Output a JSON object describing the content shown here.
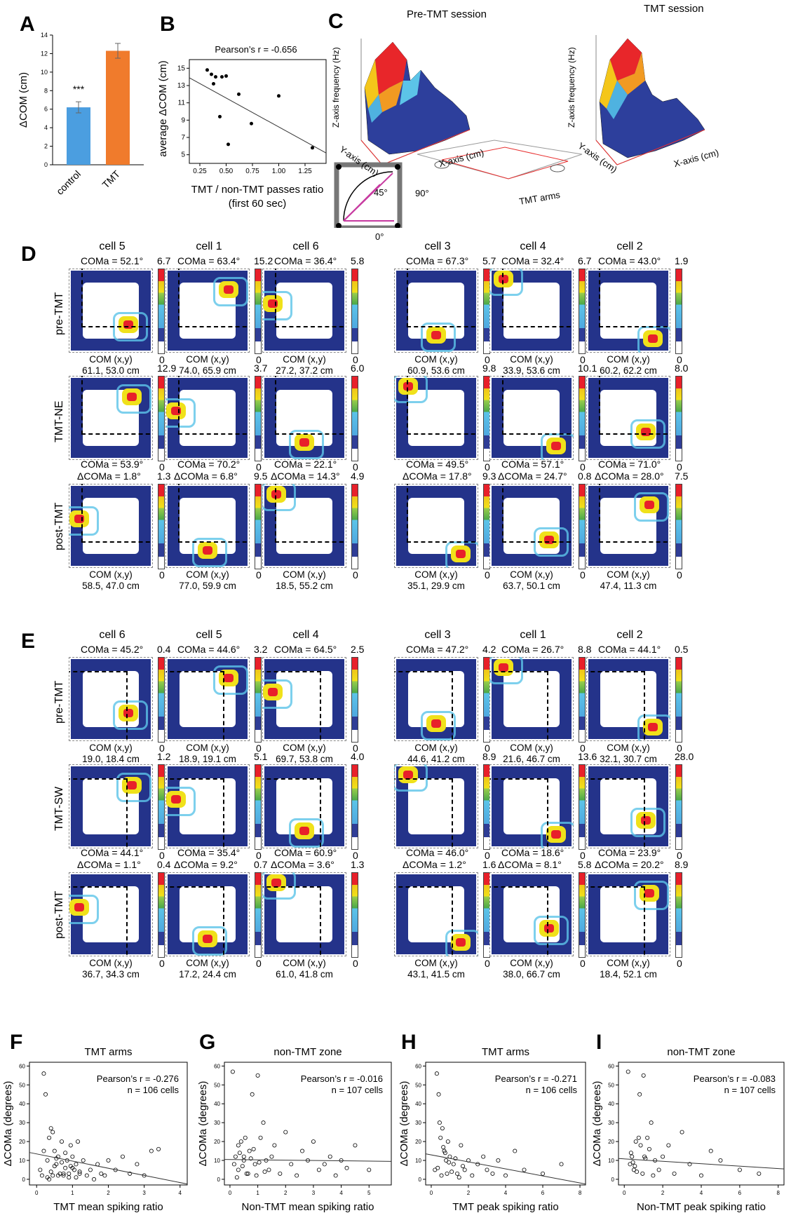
{
  "panels": {
    "A": {
      "letter": "A",
      "ylabel": "ΔCOM (cm)",
      "stars": "***",
      "chart_data": {
        "type": "bar",
        "categories": [
          "control",
          "TMT"
        ],
        "values": [
          6.2,
          12.3
        ],
        "errors": [
          0.6,
          0.8
        ],
        "ylim": [
          0,
          14
        ],
        "yticks": [
          "0",
          "2",
          "4",
          "6",
          "8",
          "10",
          "12",
          "14"
        ],
        "colors": [
          "#4b9ee0",
          "#f07b2c"
        ]
      }
    },
    "B": {
      "letter": "B",
      "annotation": "Pearson’s r = -0.656",
      "ylabel": "average ΔCOM (cm)",
      "xlabel1": "TMT / non-TMT passes ratio",
      "xlabel2": "(first 60 sec)",
      "chart_data": {
        "type": "scatter",
        "xlim": [
          0.15,
          1.45
        ],
        "ylim": [
          4,
          16
        ],
        "xticks": [
          "0.25",
          "0.50",
          "0.75",
          "1.00",
          "1.25"
        ],
        "yticks": [
          "5",
          "7",
          "9",
          "11",
          "13",
          "15"
        ],
        "x": [
          0.32,
          0.36,
          0.38,
          0.4,
          0.46,
          0.5,
          0.62,
          0.74,
          1.0,
          1.32,
          0.52,
          0.44
        ],
        "y": [
          14.8,
          14.3,
          13.2,
          14.0,
          14.0,
          14.1,
          12.0,
          8.6,
          11.8,
          5.8,
          6.2,
          9.4
        ],
        "fit": [
          [
            0.15,
            13.9
          ],
          [
            1.45,
            5.2
          ]
        ]
      }
    },
    "C": {
      "letter": "C",
      "title_left": "Pre-TMT session",
      "title_right": "TMT session",
      "zlabel": "Z-axis frequency (Hz)",
      "ylabel": "Y-axis (cm)",
      "xlabel": "X-axis (cm)",
      "tmt_arms": "TMT arms",
      "zticks_left": [
        "0",
        "0.5",
        "1.0",
        "1.5",
        "2.0",
        "2.5",
        "3.0",
        "3.5"
      ],
      "zticks_right": [
        "0",
        "0.5",
        "1.0",
        "1.5",
        "2.0",
        "2.5",
        "3.0",
        "3.5",
        "4.0"
      ],
      "yticks": [
        "0",
        "20",
        "40",
        "60",
        "80"
      ],
      "xticks": [
        "0",
        "20",
        "40",
        "60",
        "80"
      ],
      "angle_labels": [
        "45°",
        "90°",
        "0°"
      ]
    },
    "D": {
      "letter": "D",
      "rows": [
        "pre-TMT",
        "TMT-NE",
        "post-TMT"
      ],
      "cells": [
        {
          "name": "cell 5",
          "pre": {
            "coma": "COMa = 52.1°",
            "max": "6.7",
            "min": "0",
            "com1": "COM (x,y)",
            "com2": "61.1, 53.0 cm"
          },
          "mid": {
            "max": "12.9",
            "min": "0"
          },
          "post": {
            "coma": "COMa = 53.9°",
            "dcoma": "ΔCOMa = 1.8°",
            "max": "1.3",
            "min": "0",
            "com1": "COM (x,y)",
            "com2": "58.5, 47.0 cm"
          }
        },
        {
          "name": "cell 1",
          "pre": {
            "coma": "COMa = 63.4°",
            "max": "15.2",
            "min": "0",
            "com1": "COM (x,y)",
            "com2": "74.0, 65.9 cm"
          },
          "mid": {
            "max": "3.7",
            "min": "0"
          },
          "post": {
            "coma": "COMa = 70.2°",
            "dcoma": "ΔCOMa = 6.8°",
            "max": "9.5",
            "min": "0",
            "com1": "COM (x,y)",
            "com2": "77.0, 59.9 cm"
          }
        },
        {
          "name": "cell 6",
          "pre": {
            "coma": "COMa = 36.4°",
            "max": "5.8",
            "min": "0",
            "com1": "COM (x,y)",
            "com2": "27.2, 37.2 cm"
          },
          "mid": {
            "max": "6.0",
            "min": "0"
          },
          "post": {
            "coma": "COMa = 22.1°",
            "dcoma": "ΔCOMa = 14.3°",
            "max": "4.9",
            "min": "0",
            "com1": "COM (x,y)",
            "com2": "18.5, 55.2 cm"
          }
        },
        {
          "name": "cell 3",
          "pre": {
            "coma": "COMa = 67.3°",
            "max": "5.7",
            "min": "0",
            "com1": "COM (x,y)",
            "com2": "60.9, 53.6 cm"
          },
          "mid": {
            "max": "9.8",
            "min": "0"
          },
          "post": {
            "coma": "COMa = 49.5°",
            "dcoma": "ΔCOMa = 17.8°",
            "max": "9.3",
            "min": "0",
            "com1": "COM (x,y)",
            "com2": "35.1, 29.9 cm"
          }
        },
        {
          "name": "cell 4",
          "pre": {
            "coma": "COMa = 32.4°",
            "max": "6.7",
            "min": "0",
            "com1": "COM (x,y)",
            "com2": "33.9, 53.6 cm"
          },
          "mid": {
            "max": "10.1",
            "min": "0"
          },
          "post": {
            "coma": "COMa = 57.1°",
            "dcoma": "ΔCOMa = 24.7°",
            "max": "0.8",
            "min": "0",
            "com1": "COM (x,y)",
            "com2": "63.7, 50.1 cm"
          }
        },
        {
          "name": "cell 2",
          "pre": {
            "coma": "COMa = 43.0°",
            "max": "1.9",
            "min": "0",
            "com1": "COM (x,y)",
            "com2": "60.2, 62.2 cm"
          },
          "mid": {
            "max": "8.0",
            "min": "0"
          },
          "post": {
            "coma": "COMa = 71.0°",
            "dcoma": "ΔCOMa = 28.0°",
            "max": "7.5",
            "min": "0",
            "com1": "COM (x,y)",
            "com2": "47.4, 11.3 cm"
          }
        }
      ]
    },
    "E": {
      "letter": "E",
      "rows": [
        "pre-TMT",
        "TMT-SW",
        "post-TMT"
      ],
      "cells": [
        {
          "name": "cell 6",
          "pre": {
            "coma": "COMa = 45.2°",
            "max": "0.4",
            "min": "0",
            "com1": "COM (x,y)",
            "com2": "19.0, 18.4 cm"
          },
          "mid": {
            "max": "1.2",
            "min": "0"
          },
          "post": {
            "coma": "COMa = 44.1°",
            "dcoma": "ΔCOMa = 1.1°",
            "max": "0.4",
            "min": "0",
            "com1": "COM (x,y)",
            "com2": "36.7, 34.3 cm"
          }
        },
        {
          "name": "cell 5",
          "pre": {
            "coma": "COMa = 44.6°",
            "max": "3.2",
            "min": "0",
            "com1": "COM (x,y)",
            "com2": "18.9, 19.1 cm"
          },
          "mid": {
            "max": "5.1",
            "min": "0"
          },
          "post": {
            "coma": "COMa = 35.4°",
            "dcoma": "ΔCOMa = 9.2°",
            "max": "0.7",
            "min": "0",
            "com1": "COM (x,y)",
            "com2": "17.2, 24.4 cm"
          }
        },
        {
          "name": "cell 4",
          "pre": {
            "coma": "COMa = 64.5°",
            "max": "2.5",
            "min": "0",
            "com1": "COM (x,y)",
            "com2": "69.7, 53.8 cm"
          },
          "mid": {
            "max": "4.0",
            "min": "0"
          },
          "post": {
            "coma": "COMa = 60.9°",
            "dcoma": "ΔCOMa = 3.6°",
            "max": "1.3",
            "min": "0",
            "com1": "COM (x,y)",
            "com2": "61.0, 41.8 cm"
          }
        },
        {
          "name": "cell 3",
          "pre": {
            "coma": "COMa = 47.2°",
            "max": "4.2",
            "min": "0",
            "com1": "COM (x,y)",
            "com2": "44.6, 41.2 cm"
          },
          "mid": {
            "max": "8.9",
            "min": "0"
          },
          "post": {
            "coma": "COMa = 46.0°",
            "dcoma": "ΔCOMa = 1.2°",
            "max": "1.6",
            "min": "0",
            "com1": "COM (x,y)",
            "com2": "43.1, 41.5 cm"
          }
        },
        {
          "name": "cell 1",
          "pre": {
            "coma": "COMa = 26.7°",
            "max": "8.8",
            "min": "0",
            "com1": "COM (x,y)",
            "com2": "21.6, 46.7 cm"
          },
          "mid": {
            "max": "13.6",
            "min": "0"
          },
          "post": {
            "coma": "COMa = 18.6°",
            "dcoma": "ΔCOMa = 8.1°",
            "max": "5.8",
            "min": "0",
            "com1": "COM (x,y)",
            "com2": "38.0, 66.7 cm"
          }
        },
        {
          "name": "cell 2",
          "pre": {
            "coma": "COMa = 44.1°",
            "max": "0.5",
            "min": "0",
            "com1": "COM (x,y)",
            "com2": "32.1, 30.7 cm"
          },
          "mid": {
            "max": "28.0",
            "min": "0"
          },
          "post": {
            "coma": "COMa = 23.9°",
            "dcoma": "ΔCOMa = 20.2°",
            "max": "8.9",
            "min": "0",
            "com1": "COM (x,y)",
            "com2": "18.4, 52.1 cm"
          }
        }
      ]
    },
    "F": {
      "letter": "F",
      "title": "TMT arms",
      "stat1": "Pearson’s r = -0.276",
      "stat2": "n = 106 cells",
      "ylabel": "ΔCOMa (degrees)",
      "xlabel": "TMT mean spiking ratio",
      "chart_data": {
        "type": "scatter",
        "xlim": [
          -0.2,
          4.2
        ],
        "ylim": [
          -3,
          62
        ],
        "xticks": [
          "0",
          "1",
          "2",
          "3",
          "4"
        ],
        "yticks": [
          "0",
          "10",
          "20",
          "30",
          "40",
          "50",
          "60"
        ],
        "fit": [
          [
            -0.2,
            14.2
          ],
          [
            4.2,
            -2.5
          ]
        ],
        "x": [
          0.1,
          0.2,
          0.25,
          0.3,
          0.35,
          0.4,
          0.45,
          0.5,
          0.55,
          0.6,
          0.65,
          0.7,
          0.75,
          0.8,
          0.85,
          0.9,
          0.95,
          1.0,
          1.05,
          1.1,
          1.15,
          1.2,
          1.3,
          1.4,
          1.5,
          1.6,
          1.7,
          1.8,
          1.9,
          2.0,
          2.2,
          2.4,
          2.6,
          2.8,
          3.0,
          3.2,
          3.4,
          0.3,
          0.4,
          0.5,
          0.6,
          0.7,
          0.8,
          0.9,
          1.0,
          1.2,
          0.15,
          0.35,
          0.55,
          0.75,
          0.95,
          1.1,
          0.2,
          0.45
        ],
        "y": [
          5,
          56,
          45,
          10,
          22,
          27,
          25,
          15,
          8,
          12,
          3,
          20,
          2,
          6,
          10,
          1,
          18,
          12,
          5,
          8,
          20,
          3,
          10,
          2,
          5,
          0,
          8,
          3,
          2,
          10,
          5,
          12,
          3,
          8,
          2,
          15,
          16,
          1,
          4,
          7,
          2,
          9,
          14,
          3,
          6,
          4,
          2,
          0,
          11,
          3,
          7,
          1,
          15,
          2
        ]
      }
    },
    "G": {
      "letter": "G",
      "title": "non-TMT zone",
      "stat1": "Pearson’s r = -0.016",
      "stat2": "n = 107 cells",
      "ylabel": "ΔCOMa (degrees)",
      "xlabel": "Non-TMT mean spiking ratio",
      "chart_data": {
        "type": "scatter",
        "xlim": [
          -0.2,
          5.8
        ],
        "ylim": [
          -3,
          62
        ],
        "xticks": [
          "0",
          "1",
          "2",
          "3",
          "4",
          "5"
        ],
        "yticks": [
          "0",
          "10",
          "20",
          "30",
          "40",
          "50",
          "60"
        ],
        "fit": [
          [
            -0.2,
            10.5
          ],
          [
            5.8,
            9.5
          ]
        ],
        "x": [
          0.1,
          0.15,
          0.2,
          0.3,
          0.4,
          0.5,
          0.6,
          0.7,
          0.8,
          0.9,
          1.0,
          1.1,
          1.2,
          1.3,
          1.4,
          1.5,
          1.6,
          1.8,
          2.0,
          2.2,
          2.4,
          2.6,
          2.8,
          3.0,
          3.2,
          3.4,
          3.6,
          3.8,
          4.0,
          4.2,
          4.5,
          5.0,
          0.25,
          0.35,
          0.45,
          0.55,
          0.65,
          0.75,
          0.85,
          0.95,
          1.05,
          1.25,
          0.3,
          0.5
        ],
        "y": [
          57,
          8,
          12,
          5,
          20,
          10,
          3,
          15,
          45,
          8,
          55,
          22,
          30,
          10,
          5,
          12,
          18,
          3,
          25,
          8,
          2,
          15,
          10,
          20,
          5,
          8,
          12,
          2,
          10,
          6,
          18,
          5,
          1,
          14,
          7,
          22,
          3,
          11,
          16,
          2,
          9,
          4,
          18,
          12
        ]
      }
    },
    "H": {
      "letter": "H",
      "title": "TMT arms",
      "stat1": "Pearson’s r = -0.271",
      "stat2": "n = 106 cells",
      "ylabel": "ΔCOMa (degrees)",
      "xlabel": "TMT peak spiking ratio",
      "chart_data": {
        "type": "scatter",
        "xlim": [
          -0.3,
          8.3
        ],
        "ylim": [
          -3,
          62
        ],
        "xticks": [
          "0",
          "2",
          "4",
          "6",
          "8"
        ],
        "yticks": [
          "0",
          "10",
          "20",
          "30",
          "40",
          "50",
          "60"
        ],
        "fit": [
          [
            -0.3,
            13.5
          ],
          [
            8.3,
            -2.5
          ]
        ],
        "x": [
          0.2,
          0.3,
          0.4,
          0.5,
          0.6,
          0.7,
          0.8,
          0.9,
          1.0,
          1.2,
          1.4,
          1.6,
          1.8,
          2.0,
          2.2,
          2.5,
          2.8,
          3.0,
          3.3,
          3.6,
          4.0,
          4.5,
          5.0,
          6.0,
          7.0,
          0.35,
          0.55,
          0.75,
          0.95,
          1.1,
          1.3,
          1.5,
          1.7,
          0.45,
          0.65,
          0.85
        ],
        "y": [
          5,
          56,
          45,
          22,
          27,
          15,
          10,
          20,
          12,
          8,
          3,
          18,
          5,
          10,
          2,
          8,
          12,
          5,
          3,
          10,
          2,
          15,
          5,
          3,
          8,
          6,
          2,
          14,
          9,
          4,
          11,
          1,
          7,
          30,
          17,
          3
        ]
      }
    },
    "I": {
      "letter": "I",
      "title": "non-TMT zone",
      "stat1": "Pearson’s r = -0.083",
      "stat2": "n = 107 cells",
      "ylabel": "ΔCOMa (degrees)",
      "xlabel": "Non-TMT peak spiking ratio",
      "chart_data": {
        "type": "scatter",
        "xlim": [
          -0.3,
          8.3
        ],
        "ylim": [
          -3,
          62
        ],
        "xticks": [
          "0",
          "2",
          "4",
          "6",
          "8"
        ],
        "yticks": [
          "0",
          "10",
          "20",
          "30",
          "40",
          "50",
          "60"
        ],
        "fit": [
          [
            -0.3,
            11
          ],
          [
            8.3,
            5.5
          ]
        ],
        "x": [
          0.2,
          0.3,
          0.4,
          0.5,
          0.6,
          0.8,
          1.0,
          1.2,
          1.4,
          1.6,
          1.8,
          2.0,
          2.3,
          2.6,
          3.0,
          3.4,
          4.0,
          4.5,
          5.0,
          6.0,
          7.0,
          0.35,
          0.55,
          0.75,
          0.95,
          1.1,
          1.3,
          1.5,
          0.45,
          0.65,
          0.85,
          1.05
        ],
        "y": [
          57,
          8,
          12,
          5,
          20,
          45,
          55,
          22,
          30,
          10,
          5,
          12,
          18,
          3,
          25,
          8,
          2,
          15,
          10,
          5,
          3,
          14,
          7,
          22,
          3,
          11,
          16,
          2,
          9,
          4,
          18,
          12
        ]
      }
    }
  }
}
